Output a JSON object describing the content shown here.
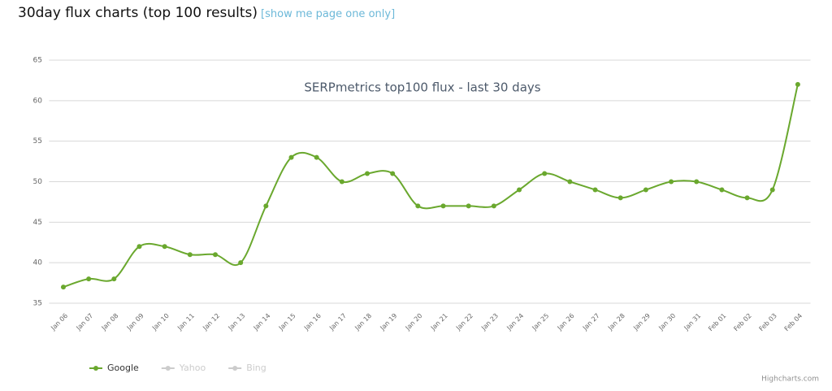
{
  "header": {
    "title": "30day flux charts (top 100 results)",
    "link": "[show me page one only]"
  },
  "chart_data": {
    "type": "line",
    "title": "SERPmetrics top100 flux - last 30 days",
    "categories": [
      "Jan 06",
      "Jan 07",
      "Jan 08",
      "Jan 09",
      "Jan 10",
      "Jan 11",
      "Jan 12",
      "Jan 13",
      "Jan 14",
      "Jan 15",
      "Jan 16",
      "Jan 17",
      "Jan 18",
      "Jan 19",
      "Jan 20",
      "Jan 21",
      "Jan 22",
      "Jan 23",
      "Jan 24",
      "Jan 25",
      "Jan 26",
      "Jan 27",
      "Jan 28",
      "Jan 29",
      "Jan 30",
      "Jan 31",
      "Feb 01",
      "Feb 02",
      "Feb 03",
      "Feb 04"
    ],
    "series": [
      {
        "name": "Google",
        "color": "#6aa82e",
        "values": [
          37,
          38,
          38,
          42,
          42,
          41,
          41,
          40,
          47,
          53,
          53,
          50,
          51,
          51,
          47,
          47,
          47,
          47,
          49,
          51,
          50,
          49,
          48,
          49,
          50,
          50,
          49,
          48,
          49,
          62
        ]
      }
    ],
    "inactive_series": [
      {
        "name": "Yahoo",
        "color": "#cccccc"
      },
      {
        "name": "Bing",
        "color": "#cccccc"
      }
    ],
    "ylim": [
      35,
      65
    ],
    "yticks": [
      35,
      40,
      45,
      50,
      55,
      60,
      65
    ],
    "grid": true,
    "smooth": true,
    "legend": "bottom-left",
    "credits": "Highcharts.com"
  }
}
